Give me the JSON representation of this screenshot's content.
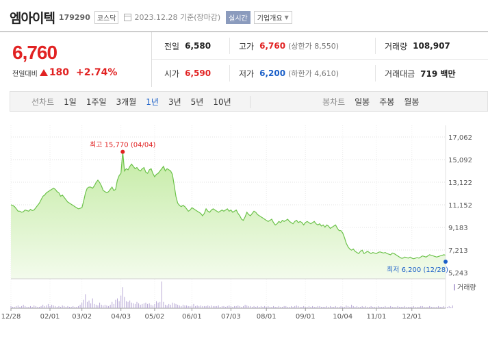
{
  "header": {
    "name": "엠아이텍",
    "code": "179290",
    "market": "코스닥",
    "date": "2023.12.28",
    "date_suffix": "기준(장마감)",
    "realtime_label": "실시간",
    "company_info_label": "기업개요"
  },
  "price": {
    "current": "6,760",
    "change_label": "전일대비",
    "change_value": "180",
    "change_pct": "+2.74%",
    "direction": "up"
  },
  "stats": {
    "prev_close": {
      "label": "전일",
      "value": "6,580"
    },
    "high": {
      "label": "고가",
      "value": "6,760",
      "sub": "(상한가 8,550)"
    },
    "volume": {
      "label": "거래량",
      "value": "108,907"
    },
    "open": {
      "label": "시가",
      "value": "6,590"
    },
    "low": {
      "label": "저가",
      "value": "6,200",
      "sub": "(하한가 4,610)"
    },
    "amount": {
      "label": "거래대금",
      "value": "719 백만"
    }
  },
  "tabs": {
    "line_label": "선차트",
    "line_periods": [
      "1일",
      "1주일",
      "3개월",
      "1년",
      "3년",
      "5년",
      "10년"
    ],
    "active_period": "1년",
    "candle_label": "봉차트",
    "candle_periods": [
      "일봉",
      "주봉",
      "월봉"
    ]
  },
  "colors": {
    "up": "#e12222",
    "down": "#1a5fc8",
    "line": "#6cc24a",
    "fill_top": "#c4eba4",
    "fill_bottom": "#f3fbec",
    "volume_bar": "#b8a9d6",
    "realtime_bg": "#8b9bbd"
  },
  "chart_data": {
    "type": "area",
    "y_ticks": [
      "17,062",
      "15,092",
      "13,122",
      "11,152",
      "9,183",
      "7,213",
      "5,243"
    ],
    "y_tick_values": [
      17062,
      15092,
      13122,
      11152,
      9183,
      7213,
      5243
    ],
    "ylim": [
      5243,
      17062
    ],
    "x_ticks": [
      "12/28",
      "02/01",
      "03/02",
      "04/03",
      "05/02",
      "06/01",
      "07/03",
      "08/01",
      "09/01",
      "10/04",
      "11/01",
      "12/01"
    ],
    "x_tick_index": [
      0,
      22,
      40,
      62,
      81,
      102,
      124,
      144,
      166,
      187,
      206,
      226
    ],
    "max_annotation": {
      "label": "최고 15,770 (04/04)",
      "index": 63,
      "value": 15770
    },
    "min_annotation": {
      "label": "최저 6,200 (12/28)",
      "index": 245,
      "value": 6200
    },
    "volume_label": "거래량",
    "series": [
      {
        "values": [
          11150,
          11100,
          11000,
          10800,
          10600,
          10600,
          10500,
          10550,
          10700,
          10650,
          10600,
          10750,
          10650,
          10700,
          10900,
          11100,
          11300,
          11600,
          11900,
          12000,
          12200,
          12300,
          12400,
          12500,
          12600,
          12500,
          12300,
          12200,
          11900,
          12000,
          11800,
          11600,
          11400,
          11300,
          11200,
          11100,
          11000,
          10900,
          10800,
          10850,
          10900,
          11500,
          12200,
          12600,
          12700,
          12700,
          12600,
          12800,
          13100,
          13300,
          13100,
          12800,
          12400,
          12300,
          12200,
          12300,
          12500,
          12700,
          12400,
          12500,
          13300,
          13700,
          13900,
          15770,
          14100,
          14300,
          14200,
          14500,
          14700,
          14500,
          14300,
          14400,
          14200,
          14100,
          14300,
          14400,
          14000,
          13900,
          14200,
          14300,
          13900,
          13600,
          13800,
          13900,
          14100,
          14300,
          14500,
          14100,
          14300,
          14200,
          14100,
          13800,
          12900,
          11900,
          11300,
          11100,
          11000,
          11100,
          11000,
          10800,
          10600,
          10700,
          10900,
          10800,
          10700,
          10600,
          10500,
          10400,
          10200,
          10400,
          10800,
          10600,
          10500,
          10700,
          10800,
          10700,
          10600,
          10500,
          10600,
          10700,
          10600,
          10700,
          10800,
          10600,
          10700,
          10500,
          10600,
          10700,
          10400,
          10200,
          9900,
          9800,
          10100,
          10500,
          10300,
          10200,
          10400,
          10600,
          10500,
          10300,
          10200,
          10100,
          10000,
          9900,
          9800,
          9700,
          9800,
          9900,
          9600,
          9400,
          9500,
          9700,
          9600,
          9800,
          9700,
          9800,
          9900,
          9700,
          9600,
          9500,
          9700,
          9800,
          9600,
          9700,
          9600,
          9400,
          9600,
          9700,
          9600,
          9500,
          9600,
          9700,
          9500,
          9400,
          9500,
          9300,
          9400,
          9200,
          9400,
          9300,
          9100,
          9200,
          9300,
          9400,
          9100,
          8900,
          8900,
          8700,
          8300,
          7800,
          7500,
          7300,
          7200,
          7300,
          7100,
          7000,
          6900,
          7100,
          7200,
          6900,
          7000,
          7100,
          7000,
          6900,
          7000,
          6950,
          6900,
          7000,
          7050,
          7000,
          6950,
          7000,
          6900,
          6850,
          6800,
          6950,
          6900,
          6800,
          6700,
          6600,
          6500,
          6500,
          6600,
          6550,
          6500,
          6600,
          6500,
          6450,
          6500,
          6550,
          6500,
          6600,
          6700,
          6650,
          6600,
          6700,
          6800,
          6750,
          6700,
          6650,
          6600,
          6650,
          6700,
          6750,
          6800,
          6760
        ]
      }
    ],
    "volume": [
      3,
      2,
      2,
      3,
      4,
      2,
      3,
      5,
      3,
      2,
      2,
      3,
      2,
      4,
      3,
      2,
      2,
      3,
      5,
      3,
      4,
      6,
      3,
      5,
      4,
      3,
      2,
      3,
      2,
      4,
      3,
      2,
      3,
      2,
      2,
      3,
      2,
      2,
      3,
      5,
      8,
      12,
      20,
      9,
      11,
      7,
      14,
      6,
      5,
      4,
      8,
      5,
      4,
      5,
      4,
      3,
      5,
      9,
      6,
      12,
      14,
      10,
      18,
      30,
      16,
      10,
      9,
      11,
      8,
      7,
      6,
      9,
      7,
      5,
      6,
      7,
      8,
      6,
      7,
      5,
      4,
      6,
      10,
      8,
      9,
      38,
      9,
      5,
      4,
      6,
      5,
      8,
      7,
      6,
      5,
      4,
      3,
      5,
      4,
      4,
      3,
      3,
      4,
      6,
      3,
      4,
      3,
      4,
      3,
      3,
      3,
      4,
      3,
      4,
      3,
      3,
      3,
      4,
      2,
      3,
      3,
      2,
      3,
      4,
      3,
      2,
      3,
      3,
      4,
      3,
      2,
      3,
      5,
      4,
      3,
      3,
      2,
      3,
      2,
      3,
      2,
      3,
      2,
      3,
      2,
      3,
      2,
      2,
      3,
      2,
      2,
      3,
      2,
      2,
      3,
      3,
      2,
      2,
      3,
      2,
      3,
      4,
      3,
      2,
      2,
      3,
      2,
      2,
      3,
      2,
      3,
      2,
      2,
      3,
      3,
      2,
      2,
      2,
      3,
      2,
      3,
      2,
      2,
      3,
      2,
      2,
      3,
      2,
      2,
      4,
      3,
      2,
      5,
      3,
      2,
      3,
      2,
      2,
      3,
      2,
      3,
      2,
      2,
      3,
      2,
      2,
      2,
      3,
      2,
      2,
      2,
      3,
      2,
      2,
      3,
      2,
      2,
      2,
      3,
      2,
      2,
      2,
      3,
      2,
      2,
      2,
      2,
      3,
      2,
      2,
      2,
      3,
      3,
      2,
      2,
      2,
      3,
      2,
      2,
      2,
      2,
      3,
      2,
      2,
      3,
      2,
      2,
      3,
      2,
      4
    ]
  }
}
